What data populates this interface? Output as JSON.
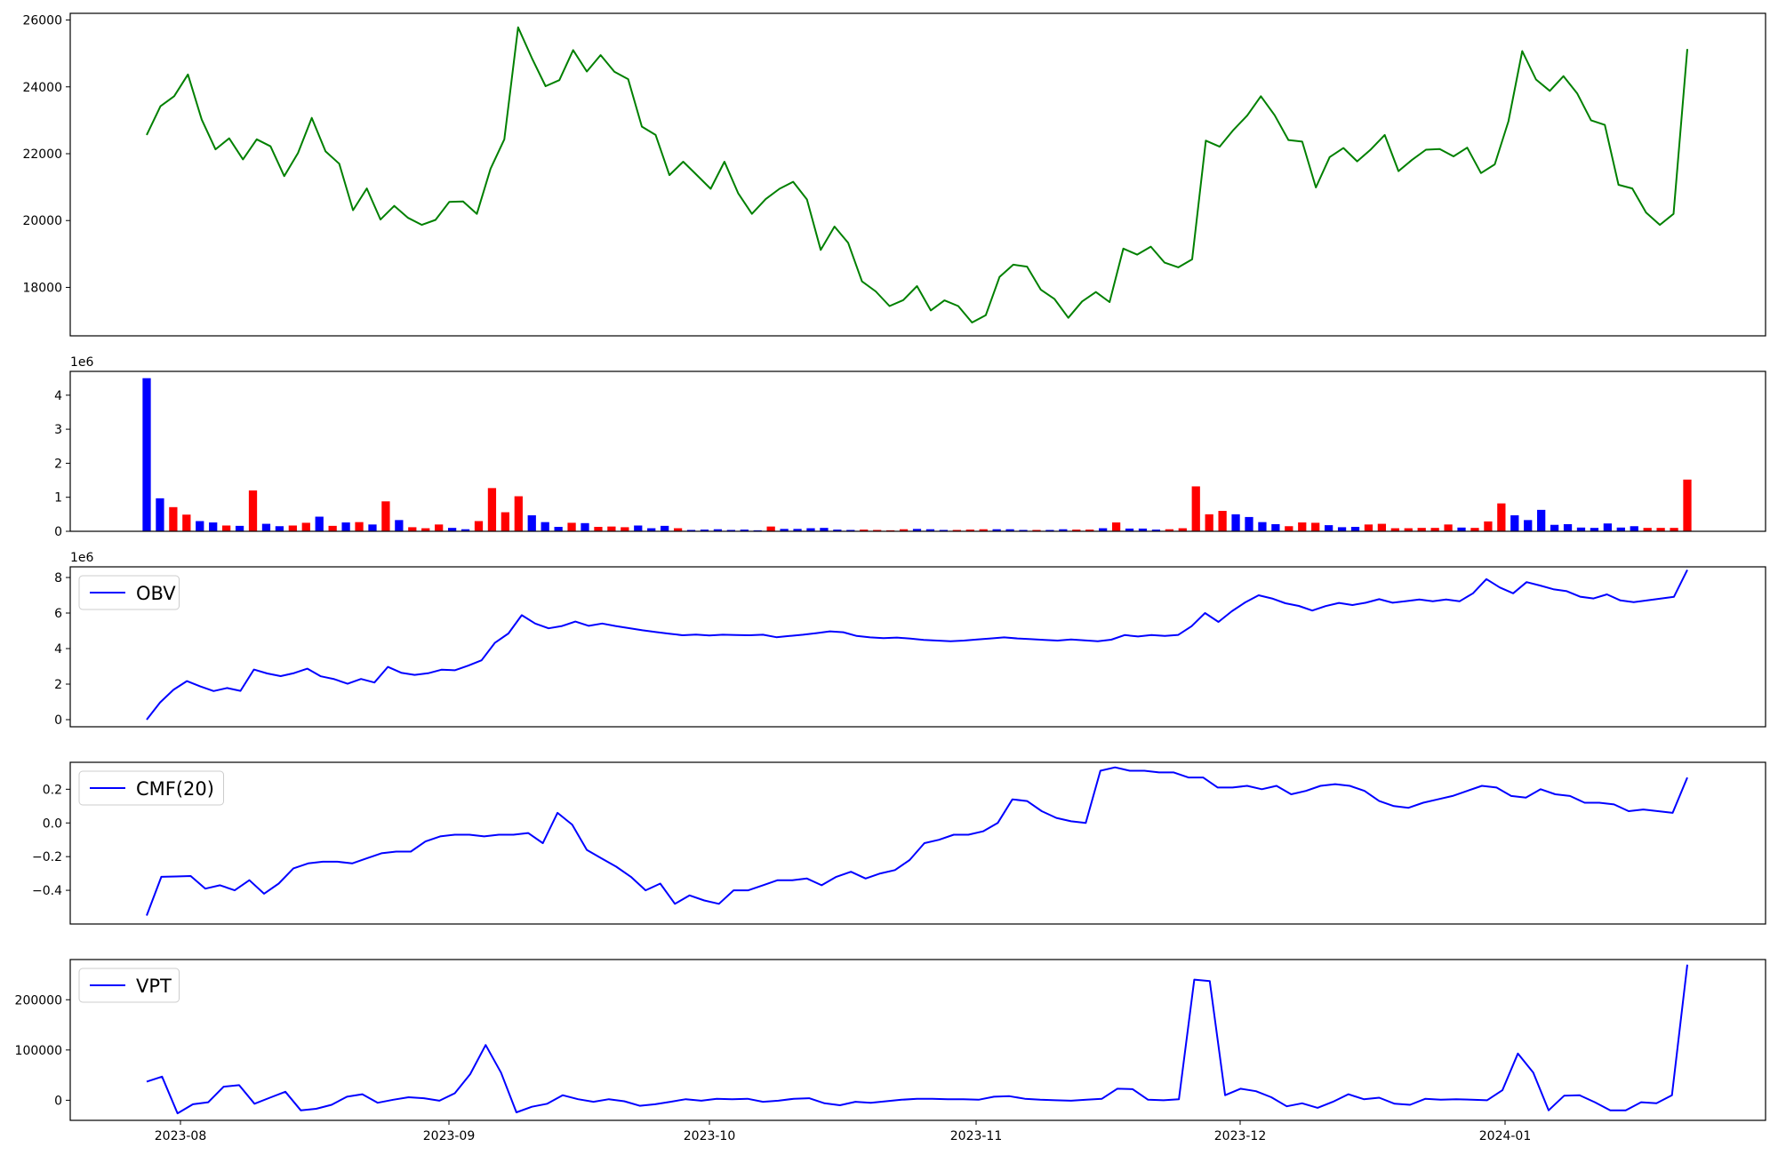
{
  "chart_data": [
    {
      "type": "line",
      "panel": "price",
      "series": [
        {
          "color": "#008000",
          "values": [
            22560,
            23420,
            23720,
            24370,
            23020,
            22130,
            22460,
            21830,
            22430,
            22220,
            21330,
            22020,
            23070,
            22070,
            21700,
            20310,
            20960,
            20030,
            20440,
            20080,
            19870,
            20020,
            20560,
            20570,
            20200,
            21550,
            22430,
            25780,
            24860,
            24020,
            24200,
            25100,
            24460,
            24950,
            24450,
            24230,
            22810,
            22560,
            21360,
            21760,
            21360,
            20950,
            21760,
            20820,
            20200,
            20640,
            20950,
            21160,
            20630,
            19120,
            19820,
            19330,
            18180,
            17880,
            17440,
            17620,
            18040,
            17310,
            17610,
            17440,
            16950,
            17170,
            18310,
            18680,
            18620,
            17930,
            17650,
            17090,
            17580,
            17860,
            17560,
            19160,
            18980,
            19220,
            18740,
            18600,
            18840,
            22390,
            22210,
            22710,
            23140,
            23720,
            23150,
            22410,
            22360,
            20990,
            21900,
            22170,
            21770,
            22130,
            22560,
            21480,
            21820,
            22120,
            22140,
            21920,
            22180,
            21420,
            21680,
            22970,
            25070,
            24220,
            23880,
            24320,
            23800,
            23000,
            22860,
            21070,
            20960,
            20240,
            19870,
            20200,
            25130
          ]
        }
      ],
      "yticks": [
        18000,
        20000,
        22000,
        24000,
        26000
      ],
      "ylim": [
        16550,
        26200
      ]
    },
    {
      "type": "bar",
      "panel": "volume",
      "offset_text": "1e6",
      "colors": {
        "up": "#0000ff",
        "down": "#ff0000"
      },
      "values": [
        4.5,
        0.97,
        0.71,
        0.49,
        0.3,
        0.26,
        0.17,
        0.16,
        1.2,
        0.22,
        0.15,
        0.17,
        0.25,
        0.43,
        0.16,
        0.26,
        0.27,
        0.2,
        0.88,
        0.33,
        0.12,
        0.09,
        0.2,
        0.1,
        0.06,
        0.3,
        1.27,
        0.56,
        1.03,
        0.47,
        0.27,
        0.13,
        0.25,
        0.24,
        0.13,
        0.14,
        0.12,
        0.17,
        0.09,
        0.16,
        0.09,
        0.04,
        0.05,
        0.06,
        0.04,
        0.05,
        0.03,
        0.14,
        0.07,
        0.07,
        0.09,
        0.1,
        0.05,
        0.04,
        0.05,
        0.04,
        0.03,
        0.06,
        0.07,
        0.06,
        0.04,
        0.04,
        0.05,
        0.06,
        0.06,
        0.06,
        0.04,
        0.04,
        0.04,
        0.06,
        0.05,
        0.05,
        0.09,
        0.26,
        0.08,
        0.08,
        0.05,
        0.06,
        0.09,
        1.32,
        0.5,
        0.6,
        0.5,
        0.42,
        0.27,
        0.21,
        0.15,
        0.26,
        0.25,
        0.18,
        0.12,
        0.13,
        0.2,
        0.22,
        0.09,
        0.09,
        0.1,
        0.1,
        0.2,
        0.11,
        0.1,
        0.29,
        0.82,
        0.47,
        0.33,
        0.63,
        0.19,
        0.21,
        0.11,
        0.1,
        0.23,
        0.11,
        0.15,
        0.1,
        0.1,
        0.1,
        1.52
      ],
      "directions": [
        "up",
        "up",
        "down",
        "down",
        "up",
        "up",
        "down",
        "up",
        "down",
        "up",
        "up",
        "down",
        "down",
        "up",
        "down",
        "up",
        "down",
        "up",
        "down",
        "up",
        "down",
        "down",
        "down",
        "up",
        "up",
        "down",
        "down",
        "down",
        "down",
        "up",
        "up",
        "up",
        "down",
        "up",
        "down",
        "down",
        "down",
        "up",
        "up",
        "up",
        "down",
        "up",
        "up",
        "up",
        "up",
        "up",
        "up",
        "down",
        "up",
        "up",
        "up",
        "up",
        "up",
        "up",
        "down",
        "down",
        "down",
        "down",
        "up",
        "up",
        "up",
        "down",
        "down",
        "down",
        "up",
        "up",
        "up",
        "down",
        "up",
        "up",
        "down",
        "down",
        "up",
        "down",
        "up",
        "up",
        "up",
        "down",
        "down",
        "down",
        "down",
        "down",
        "up",
        "up",
        "up",
        "up",
        "down",
        "down",
        "down",
        "up",
        "up",
        "up",
        "down",
        "down",
        "down",
        "down",
        "down",
        "down",
        "down",
        "up",
        "down",
        "down",
        "down",
        "up",
        "up",
        "up",
        "up",
        "up",
        "up",
        "up",
        "up",
        "up",
        "up",
        "down",
        "down",
        "down",
        "down"
      ],
      "yticks": [
        0,
        1,
        2,
        3,
        4
      ],
      "ylim": [
        0,
        4.7
      ]
    },
    {
      "type": "line",
      "panel": "obv",
      "offset_text": "1e6",
      "series": [
        {
          "name": "OBV",
          "color": "#0000ff",
          "values": [
            0.0,
            0.97,
            1.68,
            2.17,
            1.87,
            1.61,
            1.78,
            1.62,
            2.82,
            2.6,
            2.45,
            2.62,
            2.87,
            2.44,
            2.28,
            2.02,
            2.29,
            2.09,
            2.97,
            2.64,
            2.52,
            2.61,
            2.81,
            2.78,
            3.04,
            3.34,
            4.33,
            4.85,
            5.88,
            5.41,
            5.14,
            5.27,
            5.52,
            5.28,
            5.41,
            5.27,
            5.15,
            5.03,
            4.93,
            4.84,
            4.75,
            4.79,
            4.74,
            4.78,
            4.76,
            4.75,
            4.78,
            4.64,
            4.71,
            4.78,
            4.87,
            4.97,
            4.92,
            4.71,
            4.63,
            4.59,
            4.62,
            4.56,
            4.49,
            4.45,
            4.41,
            4.45,
            4.51,
            4.57,
            4.63,
            4.57,
            4.53,
            4.49,
            4.45,
            4.51,
            4.46,
            4.41,
            4.5,
            4.76,
            4.68,
            4.76,
            4.71,
            4.77,
            5.26,
            6.0,
            5.5,
            6.1,
            6.6,
            7.0,
            6.82,
            6.55,
            6.4,
            6.14,
            6.39,
            6.57,
            6.45,
            6.58,
            6.78,
            6.58,
            6.67,
            6.76,
            6.66,
            6.76,
            6.66,
            7.11,
            7.91,
            7.44,
            7.11,
            7.74,
            7.55,
            7.34,
            7.23,
            6.92,
            6.82,
            7.05,
            6.71,
            6.61,
            6.71,
            6.81,
            6.91,
            8.43
          ]
        }
      ],
      "yticks": [
        0,
        2,
        4,
        6,
        8
      ],
      "ylim": [
        -0.4,
        8.6
      ]
    },
    {
      "type": "line",
      "panel": "cmf",
      "series": [
        {
          "name": "CMF(20)",
          "color": "#0000ff",
          "values": [
            -0.55,
            -0.32,
            -0.318,
            -0.315,
            -0.39,
            -0.37,
            -0.4,
            -0.34,
            -0.42,
            -0.36,
            -0.27,
            -0.24,
            -0.23,
            -0.23,
            -0.24,
            -0.21,
            -0.18,
            -0.17,
            -0.17,
            -0.11,
            -0.08,
            -0.07,
            -0.07,
            -0.08,
            -0.07,
            -0.07,
            -0.06,
            -0.12,
            0.06,
            -0.01,
            -0.16,
            -0.21,
            -0.26,
            -0.32,
            -0.4,
            -0.36,
            -0.48,
            -0.43,
            -0.46,
            -0.48,
            -0.4,
            -0.4,
            -0.37,
            -0.34,
            -0.34,
            -0.33,
            -0.37,
            -0.32,
            -0.29,
            -0.33,
            -0.3,
            -0.28,
            -0.22,
            -0.12,
            -0.1,
            -0.07,
            -0.07,
            -0.05,
            0.0,
            0.14,
            0.13,
            0.07,
            0.03,
            0.01,
            0.0,
            0.31,
            0.33,
            0.31,
            0.31,
            0.3,
            0.3,
            0.27,
            0.27,
            0.21,
            0.21,
            0.22,
            0.2,
            0.22,
            0.17,
            0.19,
            0.22,
            0.23,
            0.22,
            0.19,
            0.13,
            0.1,
            0.09,
            0.12,
            0.14,
            0.16,
            0.19,
            0.22,
            0.21,
            0.16,
            0.15,
            0.2,
            0.17,
            0.16,
            0.12,
            0.12,
            0.11,
            0.07,
            0.08,
            0.07,
            0.06,
            0.27
          ]
        }
      ],
      "yticks": [
        -0.4,
        -0.2,
        0.0,
        0.2
      ],
      "ylim": [
        -0.6,
        0.36
      ]
    },
    {
      "type": "line",
      "panel": "vpt",
      "series": [
        {
          "name": "VPT",
          "color": "#0000ff",
          "values": [
            37000,
            47000,
            -26000,
            -8000,
            -4000,
            27000,
            30000,
            -7000,
            5000,
            17000,
            -20000,
            -17000,
            -9000,
            7000,
            12000,
            -5000,
            1000,
            6000,
            4000,
            -1000,
            14000,
            52000,
            110000,
            55000,
            -24000,
            -13000,
            -7000,
            10000,
            2000,
            -3000,
            2000,
            -2000,
            -11000,
            -8000,
            -3000,
            2000,
            -1000,
            3000,
            2000,
            3000,
            -3000,
            -1000,
            3000,
            4000,
            -6000,
            -10000,
            -3000,
            -5000,
            -2000,
            1000,
            3000,
            3000,
            2000,
            2000,
            1000,
            7000,
            8000,
            3000,
            1000,
            0,
            -1000,
            1000,
            3000,
            23000,
            22000,
            1000,
            0,
            2000,
            240000,
            237000,
            10000,
            23000,
            18000,
            6000,
            -12000,
            -6000,
            -15000,
            -3000,
            12000,
            2000,
            5000,
            -7000,
            -9000,
            3000,
            1000,
            2000,
            1000,
            0,
            20000,
            93000,
            55000,
            -20000,
            9000,
            10000,
            -4000,
            -20000,
            -20000,
            -4000,
            -6000,
            10000,
            270000
          ]
        }
      ],
      "yticks": [
        0,
        100000,
        200000
      ],
      "ylim": [
        -40000,
        280000
      ]
    }
  ],
  "x_axis": {
    "tick_labels": [
      "2023-08",
      "2023-09",
      "2023-10",
      "2023-11",
      "2023-12",
      "2024-01"
    ]
  }
}
